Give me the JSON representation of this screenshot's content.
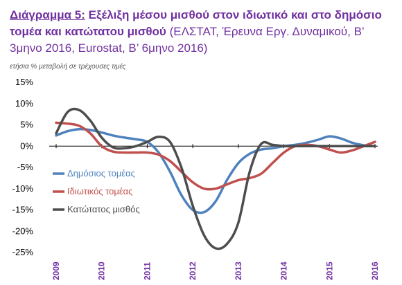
{
  "title": {
    "label": "Διάγραμμα 5:",
    "main": "Εξέλιξη μέσου μισθού στον ιδιωτικό και στο δημόσιο τομέα και κατώτατου μισθού",
    "source": "(ΕΛΣΤΑΤ, Έρευνα Εργ. Δυναμικού, Β’ 3μηνο 2016, Eurostat, Β’ 6μηνο 2016)"
  },
  "chart_data": {
    "type": "line",
    "title": "Διάγραμμα 5: Εξέλιξη μέσου μισθού στον ιδιωτικό και στο δημόσιο τομέα και κατώτατου μισθού (ΕΛΣΤΑΤ, Έρευνα Εργ. Δυναμικού, Β’ 3μηνο 2016, Eurostat, Β’ 6μηνο 2016)",
    "ylabel": "ετήσια % μεταβολή σε τρέχουσες τιμές",
    "xlabel": "",
    "ylim": [
      -25,
      15
    ],
    "yticks": [
      15,
      10,
      5,
      0,
      -5,
      -10,
      -15,
      -20,
      -25
    ],
    "ytick_labels": [
      "15%",
      "10%",
      "5%",
      "0%",
      "-5%",
      "-10%",
      "-15%",
      "-20%",
      "-25%"
    ],
    "xlim": [
      2009,
      2016
    ],
    "xticks": [
      2009,
      2010,
      2011,
      2012,
      2013,
      2014,
      2015,
      2016
    ],
    "xtick_labels": [
      "2009",
      "2010",
      "2011",
      "2012",
      "2013",
      "2014",
      "2015",
      "2016"
    ],
    "grid": false,
    "legend_position": "left",
    "series": [
      {
        "name": "Δημόσιος τομέας",
        "color": "#4f81bd",
        "x": [
          2009.0,
          2009.25,
          2009.5,
          2009.75,
          2010.0,
          2010.25,
          2010.5,
          2010.75,
          2011.0,
          2011.25,
          2011.5,
          2011.75,
          2012.0,
          2012.25,
          2012.5,
          2012.75,
          2013.0,
          2013.25,
          2013.5,
          2013.75,
          2014.0,
          2014.25,
          2014.5,
          2014.75,
          2015.0,
          2015.25,
          2015.5,
          2015.75,
          2016.0
        ],
        "y": [
          2.5,
          3.5,
          4.0,
          3.8,
          3.2,
          2.5,
          2.0,
          1.6,
          1.0,
          -1.5,
          -6.0,
          -11.5,
          -15.0,
          -15.5,
          -13.0,
          -8.0,
          -4.0,
          -1.8,
          -0.8,
          -0.5,
          0.0,
          0.3,
          0.8,
          1.5,
          2.3,
          1.8,
          0.8,
          0.2,
          0.0
        ]
      },
      {
        "name": "Ιδιωτικός τομέας",
        "color": "#c0504d",
        "x": [
          2009.0,
          2009.25,
          2009.5,
          2009.75,
          2010.0,
          2010.25,
          2010.5,
          2010.75,
          2011.0,
          2011.25,
          2011.5,
          2011.75,
          2012.0,
          2012.25,
          2012.5,
          2012.75,
          2013.0,
          2013.25,
          2013.5,
          2013.75,
          2014.0,
          2014.25,
          2014.5,
          2014.75,
          2015.0,
          2015.25,
          2015.5,
          2015.75,
          2016.0
        ],
        "y": [
          5.5,
          5.3,
          4.8,
          3.0,
          0.0,
          -1.3,
          -1.5,
          -1.5,
          -1.5,
          -2.0,
          -3.5,
          -6.0,
          -8.5,
          -10.0,
          -10.0,
          -9.0,
          -8.0,
          -7.5,
          -6.5,
          -4.0,
          -1.5,
          0.0,
          0.3,
          0.0,
          -0.8,
          -1.5,
          -1.0,
          0.0,
          1.0
        ]
      },
      {
        "name": "Κατώτατος μισθός",
        "color": "#4d4d4d",
        "x": [
          2009.0,
          2009.25,
          2009.5,
          2009.75,
          2010.0,
          2010.25,
          2010.5,
          2010.75,
          2011.0,
          2011.25,
          2011.5,
          2011.75,
          2012.0,
          2012.25,
          2012.5,
          2012.75,
          2013.0,
          2013.25,
          2013.5,
          2013.75,
          2014.0,
          2014.25,
          2014.5,
          2014.75,
          2015.0,
          2015.25,
          2015.5,
          2015.75,
          2016.0
        ],
        "y": [
          3.0,
          8.0,
          8.5,
          6.0,
          2.0,
          -0.3,
          -0.5,
          0.0,
          1.0,
          2.2,
          1.0,
          -5.0,
          -14.0,
          -21.0,
          -24.0,
          -23.0,
          -18.0,
          -6.0,
          0.5,
          0.3,
          0.0,
          0.0,
          0.0,
          0.0,
          0.0,
          0.0,
          0.0,
          0.0,
          0.0
        ]
      }
    ]
  }
}
